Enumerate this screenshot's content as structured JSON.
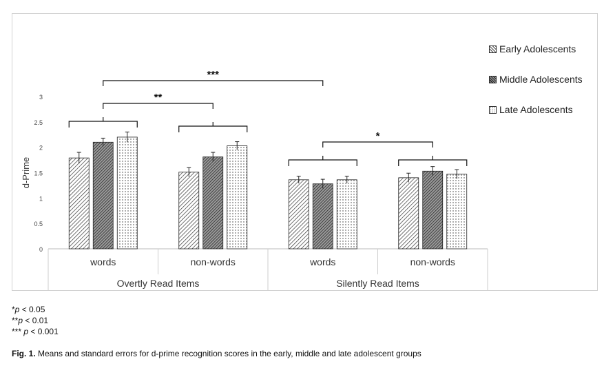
{
  "chart_data": {
    "type": "bar",
    "ylabel": "d-Prime",
    "ylim": [
      0,
      3
    ],
    "yticks": [
      "0",
      "0.5",
      "1",
      "1.5",
      "2",
      "2.5",
      "3"
    ],
    "groups": [
      {
        "label": "Overtly Read Items",
        "categories": [
          "words",
          "non-words"
        ]
      },
      {
        "label": "Silently Read Items",
        "categories": [
          "words",
          "non-words"
        ]
      }
    ],
    "categories": [
      "words",
      "non-words",
      "words",
      "non-words"
    ],
    "series": [
      {
        "name": "Early Adolescents",
        "values": [
          1.79,
          1.51,
          1.36,
          1.4
        ],
        "errors": [
          0.11,
          0.09,
          0.07,
          0.09
        ],
        "pattern": "diagonal-hatch"
      },
      {
        "name": "Middle Adolescents",
        "values": [
          2.1,
          1.81,
          1.28,
          1.53
        ],
        "errors": [
          0.08,
          0.09,
          0.09,
          0.09
        ],
        "pattern": "dense-hatch"
      },
      {
        "name": "Late Adolescents",
        "values": [
          2.2,
          2.03,
          1.36,
          1.47
        ],
        "errors": [
          0.1,
          0.08,
          0.07,
          0.09
        ],
        "pattern": "dots"
      }
    ],
    "legend_position": "right",
    "grid": false,
    "significance": [
      {
        "label": "***",
        "from_category": 0,
        "to_category": 2
      },
      {
        "label": "**",
        "from_category": 0,
        "to_category": 1
      },
      {
        "label": "*",
        "from_category": 2,
        "to_category": 3
      }
    ]
  },
  "footnotes": [
    {
      "stars": "*",
      "p": "p",
      "rest": " < 0.05"
    },
    {
      "stars": "**",
      "p": "p",
      "rest": " < 0.01"
    },
    {
      "stars": "*** ",
      "p": "p",
      "rest": " < 0.001"
    }
  ],
  "caption": {
    "label": "Fig. 1.",
    "text": " Means and standard errors for d-prime recognition scores in the early, middle and late adolescent groups"
  }
}
